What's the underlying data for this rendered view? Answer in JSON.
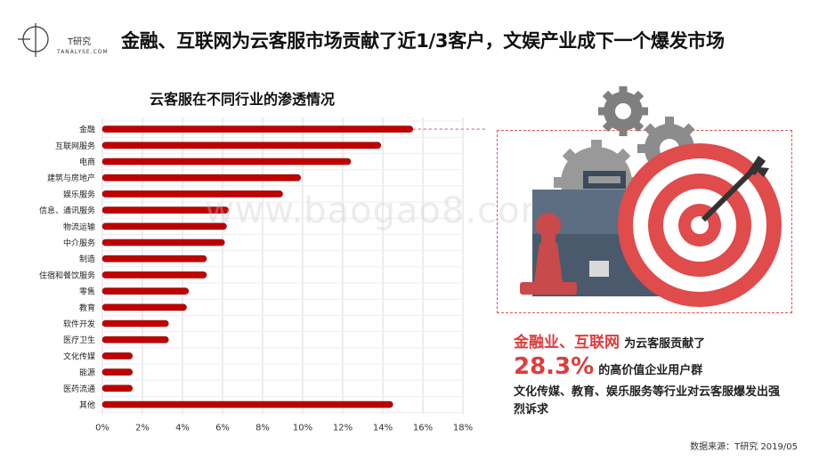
{
  "logo": {
    "name": "T研究",
    "sub": "TANALYSE.COM"
  },
  "headline": "金融、互联网为云客服市场贡献了近1/3客户，文娱产业成下一个爆发市场",
  "watermark": "www.baogao8.com",
  "callout": {
    "line1_highlight": "金融业、互联网",
    "line1_text": "为云客服贡献了",
    "line2_value": "28.3%",
    "line2_text": "的高价值企业用户群",
    "line3": "文化传媒、教育、娱乐服务等行业对云客服爆发出强烈诉求"
  },
  "source": "数据来源：T研究 2019/05",
  "colors": {
    "bar": "#c00000",
    "accent": "#e03b3b",
    "grid": "#d9d9d9"
  },
  "chart_data": {
    "type": "bar",
    "orientation": "horizontal",
    "title": "云客服在不同行业的渗透情况",
    "categories": [
      "金融",
      "互联网服务",
      "电商",
      "建筑与房地产",
      "娱乐服务",
      "信息、通讯服务",
      "物流运输",
      "中介服务",
      "制造",
      "住宿和餐饮服务",
      "零售",
      "教育",
      "软件开发",
      "医疗卫生",
      "文化传媒",
      "能源",
      "医药流通",
      "其他"
    ],
    "values": [
      15.5,
      13.9,
      12.4,
      9.9,
      9.0,
      6.3,
      6.2,
      6.1,
      5.2,
      5.2,
      4.3,
      4.2,
      3.3,
      3.3,
      1.5,
      1.5,
      1.5,
      14.5
    ],
    "x_ticks": [
      "0%",
      "2%",
      "4%",
      "6%",
      "8%",
      "10%",
      "12%",
      "14%",
      "16%",
      "18%"
    ],
    "xlim": [
      0,
      18
    ],
    "grid": true
  }
}
